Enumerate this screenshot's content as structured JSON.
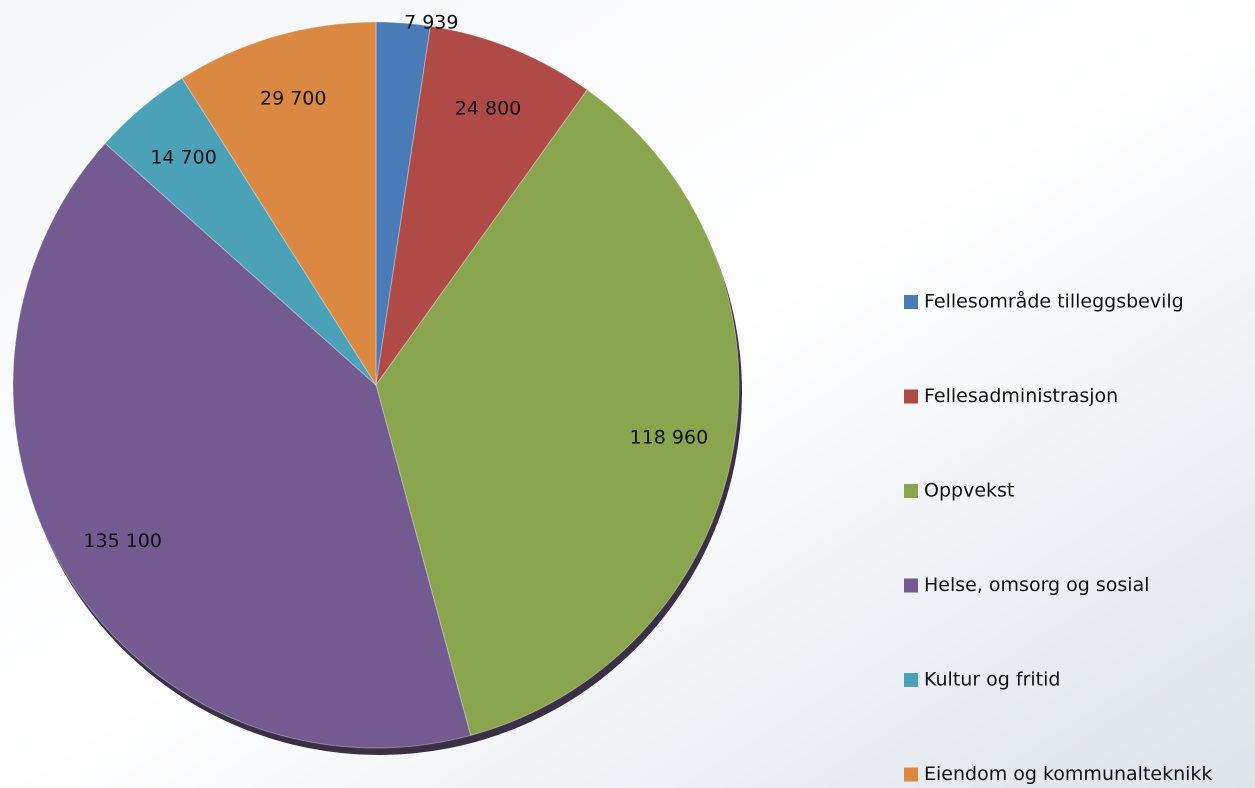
{
  "chart_data": {
    "type": "pie",
    "categories": [
      "Fellesområde tilleggsbevilg",
      "Fellesadministrasjon",
      "Oppvekst",
      "Helse, omsorg og sosial",
      "Kultur og fritid",
      "Eiendom og kommunalteknikk"
    ],
    "values": [
      7939,
      24800,
      118960,
      135100,
      14700,
      29700
    ],
    "value_labels": [
      "7 939",
      "24 800",
      "118 960",
      "135 100",
      "14 700",
      "29 700"
    ],
    "colors": [
      "#4a7bb6",
      "#b04a47",
      "#89a54e",
      "#735a91",
      "#4aa1b8",
      "#db8843"
    ],
    "legend": "right"
  }
}
